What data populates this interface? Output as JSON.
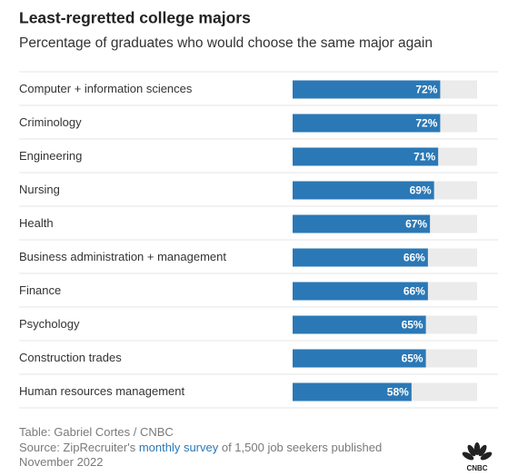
{
  "chart_data": {
    "type": "bar",
    "orientation": "horizontal",
    "title": "Least-regretted college majors",
    "subtitle": "Percentage of graduates who would choose the same major again",
    "categories": [
      "Computer + information sciences",
      "Criminology",
      "Engineering",
      "Nursing",
      "Health",
      "Business administration + management",
      "Finance",
      "Psychology",
      "Construction trades",
      "Human resources management"
    ],
    "values": [
      72,
      72,
      71,
      69,
      67,
      66,
      66,
      65,
      65,
      58
    ],
    "value_labels": [
      "72%",
      "72%",
      "71%",
      "69%",
      "67%",
      "66%",
      "66%",
      "65%",
      "65%",
      "58%"
    ],
    "color": "#2b78b6",
    "xlim": [
      0,
      90
    ]
  },
  "footer": {
    "credit": "Table: Gabriel Cortes / CNBC",
    "source_prefix": "Source: ZipRecruiter's ",
    "source_link": "monthly survey",
    "source_suffix": " of 1,500 job seekers published November 2022",
    "logo": "CNBC"
  }
}
